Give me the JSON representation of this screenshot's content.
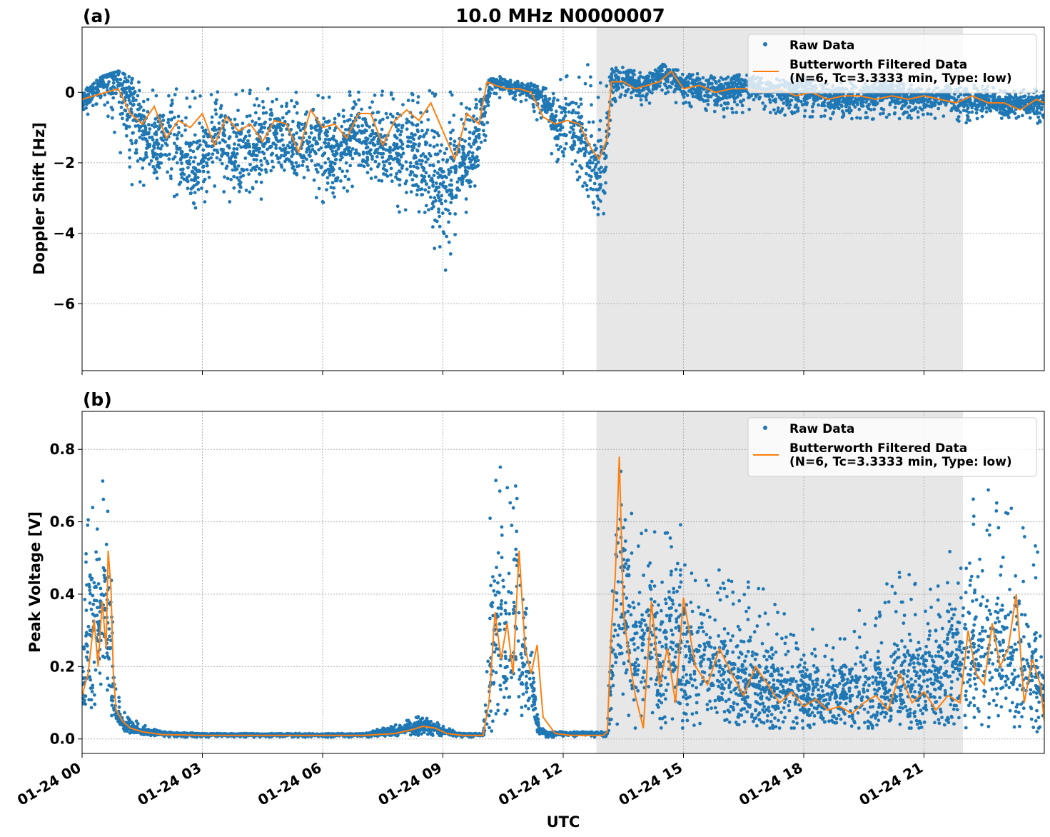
{
  "figure": {
    "title": "10.0 MHz N0000007",
    "xlabel": "UTC",
    "x_tick_labels": [
      "01-24 00",
      "01-24 03",
      "01-24 06",
      "01-24 09",
      "01-24 12",
      "01-24 15",
      "01-24 18",
      "01-24 21"
    ],
    "colors": {
      "raw": "#1f77b4",
      "filtered": "#ff7f0e",
      "shade": "#e7e7e7"
    }
  },
  "chart_data": [
    {
      "type": "scatter",
      "panel_label": "(a)",
      "ylabel": "Doppler Shift [Hz]",
      "xlim": [
        0,
        24
      ],
      "ylim": [
        -7.9,
        1.85
      ],
      "y_ticks": [
        0,
        -2,
        -4,
        -6
      ],
      "y_tick_labels": [
        "0",
        "−2",
        "−4",
        "−6"
      ],
      "grid": true,
      "legend_position": "upper-right",
      "shaded_interval": [
        12.83,
        21.97
      ],
      "x_tick_labels": [
        "01-24 00",
        "01-24 03",
        "01-24 06",
        "01-24 09",
        "01-24 12",
        "01-24 15",
        "01-24 18",
        "01-24 21"
      ],
      "series": [
        {
          "name": "Raw Data",
          "style": "points",
          "x": [
            0,
            0.5,
            0.9,
            1.0,
            1.4,
            1.8,
            2.3,
            2.8,
            3.3,
            3.8,
            4.3,
            4.8,
            5.3,
            5.8,
            6.3,
            6.8,
            7.3,
            7.8,
            8.3,
            8.7,
            9.1,
            9.5,
            9.9,
            10.2,
            10.6,
            11.0,
            11.4,
            11.8,
            12.2,
            12.5,
            12.8,
            13.0,
            13.2,
            13.6,
            14.0,
            14.5,
            15.0,
            15.5,
            16.0,
            16.5,
            17.0,
            17.5,
            18.0,
            18.5,
            19.0,
            19.5,
            20.0,
            20.5,
            21.0,
            21.5,
            22.0,
            22.5,
            23.0,
            23.5,
            24.0
          ],
          "y": [
            -0.3,
            0.3,
            0.5,
            0.2,
            -0.8,
            -1.5,
            -1.2,
            -2.5,
            -1.0,
            -1.8,
            -1.5,
            -1.2,
            -1.6,
            -1.3,
            -1.8,
            -1.2,
            -1.5,
            -1.6,
            -1.8,
            -2.5,
            -2.8,
            -1.9,
            -1.2,
            0.3,
            0.2,
            0.1,
            0.0,
            -0.8,
            -1.0,
            -1.6,
            -2.3,
            -2.8,
            0.3,
            0.4,
            0.1,
            0.5,
            0.2,
            0.1,
            0.0,
            0.2,
            0.1,
            0.0,
            0.0,
            -0.1,
            -0.2,
            -0.1,
            0.0,
            -0.1,
            -0.2,
            -0.1,
            -0.3,
            -0.2,
            -0.4,
            -0.3,
            -0.3
          ],
          "y_lower": [
            -0.8,
            -0.2,
            -1.5,
            -2.6,
            -2.8,
            -2.5,
            -3.1,
            -3.3,
            -3.0,
            -3.2,
            -3.5,
            -2.6,
            -2.8,
            -3.2,
            -3.4,
            -2.6,
            -2.9,
            -3.4,
            -3.6,
            -4.5,
            -5.2,
            -3.6,
            -2.8,
            -0.1,
            -0.2,
            -0.3,
            -0.9,
            -2.0,
            -2.3,
            -2.8,
            -3.4,
            -3.6,
            -0.4,
            -0.2,
            -0.4,
            -0.2,
            -0.4,
            -0.6,
            -0.7,
            -0.6,
            -0.7,
            -0.7,
            -0.8,
            -0.8,
            -0.8,
            -0.9,
            -0.7,
            -0.8,
            -0.8,
            -0.7,
            -0.9,
            -0.7,
            -0.8,
            -0.7,
            -1.0
          ],
          "y_upper": [
            0.1,
            0.45,
            0.6,
            0.55,
            0.3,
            0.2,
            0.1,
            0.1,
            0.1,
            0.1,
            0.1,
            0.1,
            0.1,
            0.1,
            0.1,
            0.1,
            0.15,
            0.15,
            0.15,
            0.15,
            0.15,
            0.15,
            0.25,
            0.5,
            0.4,
            0.3,
            0.2,
            0.2,
            0.7,
            0.9,
            0.6,
            0.5,
            0.7,
            0.8,
            0.6,
            0.8,
            0.6,
            0.5,
            0.5,
            0.5,
            0.4,
            0.4,
            0.4,
            0.3,
            0.3,
            0.3,
            0.3,
            0.3,
            0.2,
            0.2,
            0.2,
            0.2,
            0.1,
            0.1,
            0.1
          ]
        },
        {
          "name": "Butterworth Filtered Data\n(N=6, Tc=3.3333 min, Type: low)",
          "style": "line",
          "x": [
            0,
            0.3,
            0.6,
            0.9,
            1.2,
            1.5,
            1.8,
            2.1,
            2.4,
            2.7,
            3.0,
            3.3,
            3.6,
            3.9,
            4.2,
            4.5,
            4.8,
            5.1,
            5.4,
            5.7,
            6.0,
            6.3,
            6.6,
            6.9,
            7.2,
            7.5,
            7.8,
            8.1,
            8.4,
            8.7,
            9.0,
            9.3,
            9.6,
            9.9,
            10.1,
            10.3,
            10.6,
            10.9,
            11.2,
            11.5,
            11.8,
            12.1,
            12.4,
            12.7,
            12.9,
            13.1,
            13.2,
            13.5,
            13.8,
            14.1,
            14.4,
            14.7,
            15.0,
            15.4,
            15.8,
            16.2,
            16.6,
            17.0,
            17.4,
            17.8,
            18.2,
            18.6,
            19.0,
            19.4,
            19.8,
            20.2,
            20.6,
            21.0,
            21.4,
            21.8,
            22.2,
            22.6,
            23.0,
            23.4,
            23.8,
            24.0
          ],
          "y": [
            -0.2,
            -0.1,
            0.0,
            0.1,
            -0.6,
            -0.9,
            -0.4,
            -1.3,
            -0.8,
            -1.0,
            -0.6,
            -1.5,
            -0.7,
            -1.1,
            -0.9,
            -1.4,
            -0.8,
            -0.9,
            -1.7,
            -0.5,
            -1.0,
            -0.9,
            -1.3,
            -0.6,
            -0.6,
            -1.5,
            -0.8,
            -0.5,
            -0.8,
            -0.3,
            -1.1,
            -1.9,
            -0.6,
            -0.9,
            0.3,
            0.2,
            0.1,
            0.1,
            0.0,
            -0.7,
            -0.9,
            -0.8,
            -0.9,
            -1.6,
            -1.9,
            -1.3,
            0.3,
            0.3,
            0.1,
            0.2,
            0.3,
            0.6,
            0.1,
            0.2,
            0.0,
            0.1,
            0.1,
            0.0,
            0.1,
            -0.1,
            0.0,
            -0.2,
            -0.1,
            -0.1,
            -0.2,
            -0.1,
            -0.2,
            -0.1,
            -0.2,
            -0.3,
            -0.1,
            -0.3,
            -0.3,
            -0.5,
            -0.2,
            -0.3
          ]
        }
      ]
    },
    {
      "type": "scatter",
      "panel_label": "(b)",
      "ylabel": "Peak Voltage [V]",
      "xlim": [
        0,
        24
      ],
      "ylim": [
        -0.04,
        0.905
      ],
      "y_ticks": [
        0.0,
        0.2,
        0.4,
        0.6,
        0.8
      ],
      "y_tick_labels": [
        "0.0",
        "0.2",
        "0.4",
        "0.6",
        "0.8"
      ],
      "grid": true,
      "legend_position": "upper-right",
      "shaded_interval": [
        12.83,
        21.97
      ],
      "x_tick_labels": [
        "01-24 00",
        "01-24 03",
        "01-24 06",
        "01-24 09",
        "01-24 12",
        "01-24 15",
        "01-24 18",
        "01-24 21"
      ],
      "series": [
        {
          "name": "Raw Data",
          "style": "points",
          "x": [
            0,
            0.2,
            0.4,
            0.6,
            0.7,
            0.8,
            1.0,
            1.5,
            2.0,
            3.0,
            4.0,
            5.0,
            6.0,
            7.0,
            7.8,
            8.2,
            8.6,
            9.0,
            9.5,
            10.0,
            10.2,
            10.4,
            10.6,
            10.8,
            11.0,
            11.2,
            11.4,
            11.6,
            12.0,
            12.5,
            12.8,
            13.1,
            13.3,
            13.5,
            13.8,
            14.1,
            14.4,
            14.7,
            15.0,
            15.5,
            16.0,
            16.5,
            17.0,
            17.5,
            18.0,
            18.5,
            19.0,
            19.5,
            20.0,
            20.5,
            21.0,
            21.5,
            22.0,
            22.3,
            22.6,
            22.9,
            23.2,
            23.5,
            23.8,
            24.0
          ],
          "y": [
            0.15,
            0.3,
            0.3,
            0.4,
            0.25,
            0.08,
            0.04,
            0.02,
            0.015,
            0.012,
            0.012,
            0.012,
            0.012,
            0.012,
            0.02,
            0.03,
            0.04,
            0.02,
            0.012,
            0.012,
            0.2,
            0.3,
            0.2,
            0.35,
            0.2,
            0.15,
            0.02,
            0.015,
            0.015,
            0.015,
            0.015,
            0.015,
            0.3,
            0.4,
            0.2,
            0.3,
            0.2,
            0.3,
            0.2,
            0.22,
            0.18,
            0.16,
            0.14,
            0.13,
            0.12,
            0.12,
            0.12,
            0.13,
            0.14,
            0.15,
            0.16,
            0.18,
            0.25,
            0.22,
            0.25,
            0.26,
            0.22,
            0.2,
            0.18,
            0.12
          ],
          "y_lower": [
            0.03,
            0.06,
            0.08,
            0.1,
            0.08,
            0.04,
            0.02,
            0.01,
            0.005,
            0.005,
            0.005,
            0.005,
            0.005,
            0.005,
            0.008,
            0.01,
            0.01,
            0.008,
            0.005,
            0.005,
            0.02,
            0.05,
            0.04,
            0.06,
            0.05,
            0.04,
            0.008,
            0.005,
            0.005,
            0.005,
            0.005,
            0.005,
            0.03,
            0.04,
            0.03,
            0.03,
            0.03,
            0.03,
            0.03,
            0.03,
            0.03,
            0.03,
            0.03,
            0.03,
            0.03,
            0.03,
            0.03,
            0.03,
            0.03,
            0.03,
            0.03,
            0.03,
            0.03,
            0.03,
            0.03,
            0.03,
            0.03,
            0.02,
            0.02,
            0.02
          ],
          "y_upper": [
            0.38,
            0.75,
            0.65,
            0.8,
            0.78,
            0.18,
            0.08,
            0.04,
            0.02,
            0.015,
            0.015,
            0.015,
            0.015,
            0.015,
            0.04,
            0.055,
            0.07,
            0.035,
            0.015,
            0.015,
            0.76,
            0.78,
            0.7,
            0.8,
            0.5,
            0.3,
            0.04,
            0.02,
            0.02,
            0.02,
            0.02,
            0.02,
            0.86,
            0.8,
            0.6,
            0.58,
            0.58,
            0.58,
            0.6,
            0.55,
            0.45,
            0.44,
            0.42,
            0.38,
            0.32,
            0.3,
            0.3,
            0.38,
            0.42,
            0.48,
            0.4,
            0.5,
            0.62,
            0.7,
            0.72,
            0.68,
            0.7,
            0.64,
            0.6,
            0.35
          ]
        },
        {
          "name": "Butterworth Filtered Data\n(N=6, Tc=3.3333 min, Type: low)",
          "style": "line",
          "x": [
            0,
            0.15,
            0.3,
            0.4,
            0.5,
            0.6,
            0.65,
            0.72,
            0.78,
            0.85,
            1.0,
            1.2,
            1.5,
            2.0,
            3.0,
            5.0,
            7.0,
            7.8,
            8.2,
            8.5,
            8.8,
            9.1,
            9.5,
            10.0,
            10.15,
            10.3,
            10.45,
            10.6,
            10.75,
            10.9,
            11.05,
            11.2,
            11.35,
            11.5,
            11.8,
            12.2,
            12.6,
            12.8,
            13.0,
            13.1,
            13.2,
            13.3,
            13.4,
            13.5,
            13.65,
            13.8,
            14.0,
            14.2,
            14.4,
            14.6,
            14.8,
            15.0,
            15.3,
            15.6,
            15.9,
            16.2,
            16.5,
            16.8,
            17.1,
            17.4,
            17.7,
            18.0,
            18.3,
            18.6,
            18.9,
            19.2,
            19.5,
            19.8,
            20.1,
            20.4,
            20.7,
            21.0,
            21.3,
            21.6,
            21.9,
            22.1,
            22.3,
            22.5,
            22.7,
            22.9,
            23.1,
            23.3,
            23.5,
            23.7,
            23.9,
            24.0
          ],
          "y": [
            0.12,
            0.18,
            0.33,
            0.2,
            0.38,
            0.25,
            0.52,
            0.42,
            0.18,
            0.08,
            0.05,
            0.03,
            0.02,
            0.012,
            0.01,
            0.01,
            0.01,
            0.015,
            0.025,
            0.035,
            0.03,
            0.015,
            0.01,
            0.01,
            0.1,
            0.35,
            0.22,
            0.32,
            0.18,
            0.52,
            0.25,
            0.18,
            0.26,
            0.06,
            0.015,
            0.01,
            0.01,
            0.01,
            0.01,
            0.02,
            0.3,
            0.45,
            0.78,
            0.35,
            0.22,
            0.12,
            0.03,
            0.38,
            0.15,
            0.25,
            0.1,
            0.39,
            0.2,
            0.15,
            0.25,
            0.18,
            0.12,
            0.2,
            0.15,
            0.1,
            0.13,
            0.09,
            0.11,
            0.08,
            0.09,
            0.07,
            0.1,
            0.12,
            0.08,
            0.18,
            0.1,
            0.13,
            0.08,
            0.12,
            0.1,
            0.3,
            0.18,
            0.15,
            0.32,
            0.2,
            0.25,
            0.4,
            0.1,
            0.22,
            0.15,
            0.05
          ]
        }
      ]
    }
  ]
}
